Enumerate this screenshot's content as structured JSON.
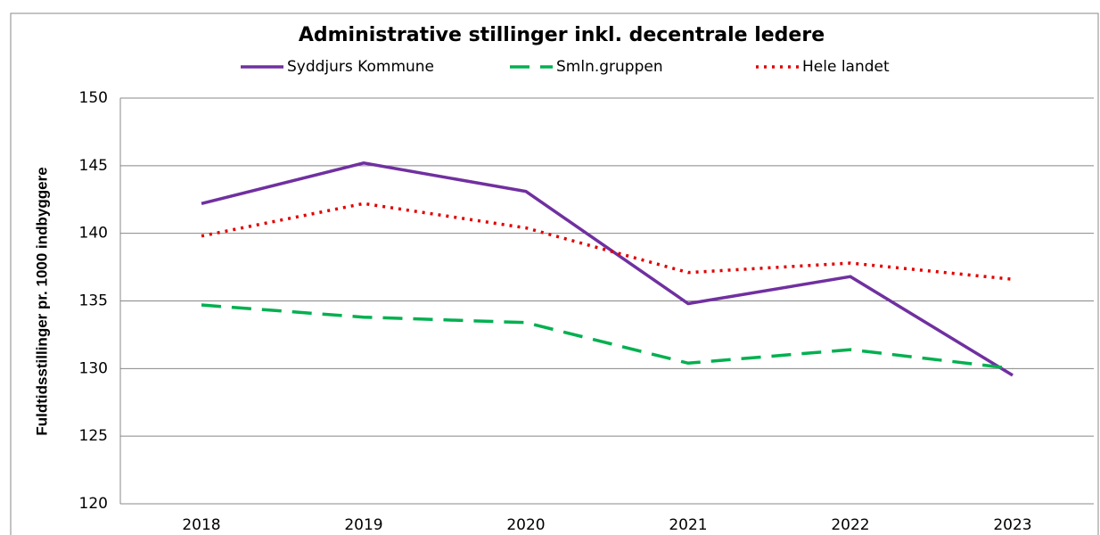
{
  "chart_data": {
    "type": "line",
    "title": "Administrative stillinger inkl. decentrale ledere",
    "y_label": "Fuldtidsstillinger pr. 1000 indbyggere",
    "categories": [
      "2018",
      "2019",
      "2020",
      "2021",
      "2022",
      "2023"
    ],
    "series": [
      {
        "name": "Syddjurs Kommune",
        "color": "#7030a0",
        "dash": "solid",
        "values": [
          142.2,
          145.2,
          143.1,
          134.8,
          136.8,
          129.5
        ]
      },
      {
        "name": "Smln.gruppen",
        "color": "#00b050",
        "dash": "dashed",
        "values": [
          134.7,
          133.8,
          133.4,
          130.4,
          131.4,
          130.0
        ]
      },
      {
        "name": "Hele landet",
        "color": "#e00000",
        "dash": "dotted",
        "values": [
          139.8,
          142.2,
          140.4,
          137.1,
          137.8,
          136.6
        ]
      }
    ],
    "ylim": [
      120,
      150
    ],
    "yticks": [
      120,
      125,
      130,
      135,
      140,
      145,
      150
    ],
    "grid": true,
    "legend": "top"
  }
}
